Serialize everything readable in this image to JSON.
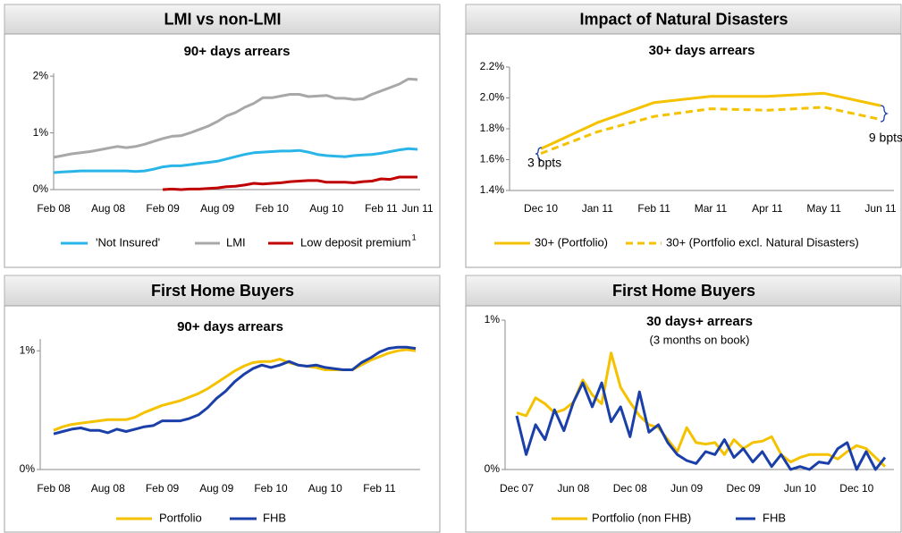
{
  "chart_data": [
    {
      "type": "line",
      "header": "LMI vs non-LMI",
      "title": "90+ days arrears",
      "categories": [
        "Feb 08",
        null,
        null,
        null,
        null,
        null,
        "Aug 08",
        null,
        null,
        null,
        null,
        null,
        "Feb 09",
        null,
        null,
        null,
        null,
        null,
        "Aug 09",
        null,
        null,
        null,
        null,
        null,
        "Feb 10",
        null,
        null,
        null,
        null,
        null,
        "Aug 10",
        null,
        null,
        null,
        null,
        null,
        "Feb 11",
        null,
        null,
        null,
        "Jun 11"
      ],
      "ylim": [
        0,
        2.05
      ],
      "yticks": [
        {
          "value": 0,
          "label": "0%"
        },
        {
          "value": 1,
          "label": "1%"
        },
        {
          "value": 2,
          "label": "2%"
        }
      ],
      "series": [
        {
          "name": "'Not Insured'",
          "color": "#29b5e8",
          "values": [
            0.3,
            0.31,
            0.32,
            0.33,
            0.33,
            0.33,
            0.33,
            0.33,
            0.33,
            0.32,
            0.33,
            0.36,
            0.4,
            0.42,
            0.42,
            0.44,
            0.46,
            0.48,
            0.5,
            0.54,
            0.58,
            0.62,
            0.65,
            0.66,
            0.67,
            0.68,
            0.68,
            0.69,
            0.66,
            0.62,
            0.6,
            0.59,
            0.58,
            0.6,
            0.61,
            0.62,
            0.64,
            0.67,
            0.7,
            0.72,
            0.71
          ]
        },
        {
          "name": "LMI",
          "color": "#a8a8a8",
          "values": [
            0.57,
            0.6,
            0.63,
            0.65,
            0.67,
            0.7,
            0.73,
            0.76,
            0.74,
            0.76,
            0.8,
            0.85,
            0.9,
            0.94,
            0.95,
            1.0,
            1.06,
            1.12,
            1.2,
            1.3,
            1.36,
            1.45,
            1.52,
            1.62,
            1.62,
            1.65,
            1.68,
            1.68,
            1.64,
            1.65,
            1.66,
            1.61,
            1.61,
            1.59,
            1.6,
            1.68,
            1.74,
            1.8,
            1.86,
            1.95,
            1.94
          ]
        },
        {
          "name": "Low deposit premium",
          "footnote": "1",
          "color": "#c00000",
          "values": [
            null,
            null,
            null,
            null,
            null,
            null,
            null,
            null,
            null,
            null,
            null,
            null,
            0.0,
            0.01,
            0.0,
            0.01,
            0.01,
            0.02,
            0.03,
            0.05,
            0.06,
            0.08,
            0.11,
            0.1,
            0.11,
            0.12,
            0.14,
            0.15,
            0.16,
            0.16,
            0.13,
            0.13,
            0.13,
            0.12,
            0.14,
            0.15,
            0.19,
            0.18,
            0.22,
            0.22,
            0.22
          ]
        }
      ]
    },
    {
      "type": "line",
      "header": "Impact of Natural Disasters",
      "title": "30+ days arrears",
      "categories": [
        "Dec 10",
        "Jan 11",
        "Feb 11",
        "Mar 11",
        "Apr 11",
        "May 11",
        "Jun 11"
      ],
      "ylim": [
        1.4,
        2.2
      ],
      "yticks": [
        {
          "value": 1.4,
          "label": "1.4%"
        },
        {
          "value": 1.6,
          "label": "1.6%"
        },
        {
          "value": 1.8,
          "label": "1.8%"
        },
        {
          "value": 2.0,
          "label": "2.0%"
        },
        {
          "value": 2.2,
          "label": "2.2%"
        }
      ],
      "series": [
        {
          "name": "30+ (Portfolio)",
          "color": "#f5c200",
          "values": [
            1.67,
            1.84,
            1.97,
            2.01,
            2.01,
            2.03,
            1.95
          ]
        },
        {
          "name": "30+ (Portfolio excl. Natural Disasters)",
          "color": "#f5c200",
          "dashed": true,
          "values": [
            1.64,
            1.78,
            1.88,
            1.93,
            1.92,
            1.94,
            1.86
          ]
        }
      ],
      "annotations": [
        "3 bpts",
        "9 bpts"
      ]
    },
    {
      "type": "line",
      "header": "First Home Buyers",
      "title": "90+ days arrears",
      "categories": [
        "Feb 08",
        null,
        null,
        null,
        null,
        null,
        "Aug 08",
        null,
        null,
        null,
        null,
        null,
        "Feb 09",
        null,
        null,
        null,
        null,
        null,
        "Aug 09",
        null,
        null,
        null,
        null,
        null,
        "Feb 10",
        null,
        null,
        null,
        null,
        null,
        "Aug 10",
        null,
        null,
        null,
        null,
        null,
        "Feb 11",
        null,
        null,
        null,
        null
      ],
      "ylim": [
        0,
        1.1
      ],
      "yticks": [
        {
          "value": 0,
          "label": "0%"
        },
        {
          "value": 1,
          "label": "1%"
        }
      ],
      "series": [
        {
          "name": "Portfolio",
          "color": "#f5c200",
          "values": [
            0.33,
            0.36,
            0.38,
            0.39,
            0.4,
            0.41,
            0.42,
            0.42,
            0.42,
            0.44,
            0.48,
            0.51,
            0.54,
            0.56,
            0.58,
            0.61,
            0.64,
            0.68,
            0.73,
            0.78,
            0.83,
            0.87,
            0.9,
            0.91,
            0.91,
            0.93,
            0.9,
            0.88,
            0.87,
            0.86,
            0.84,
            0.84,
            0.84,
            0.84,
            0.88,
            0.92,
            0.95,
            0.98,
            1.0,
            1.01,
            1.0
          ]
        },
        {
          "name": "FHB",
          "color": "#1a3fa8",
          "values": [
            0.3,
            0.32,
            0.34,
            0.35,
            0.33,
            0.33,
            0.31,
            0.34,
            0.32,
            0.34,
            0.36,
            0.37,
            0.41,
            0.41,
            0.41,
            0.43,
            0.46,
            0.52,
            0.6,
            0.66,
            0.74,
            0.8,
            0.85,
            0.88,
            0.86,
            0.88,
            0.91,
            0.88,
            0.87,
            0.88,
            0.86,
            0.85,
            0.84,
            0.84,
            0.9,
            0.94,
            0.99,
            1.02,
            1.03,
            1.03,
            1.02
          ]
        }
      ]
    },
    {
      "type": "line",
      "header": "First Home Buyers",
      "title": "30 days+ arrears",
      "subtitle": "(3 months on book)",
      "categories": [
        "Dec 07",
        null,
        null,
        null,
        null,
        null,
        "Jun 08",
        null,
        null,
        null,
        null,
        null,
        "Dec 08",
        null,
        null,
        null,
        null,
        null,
        "Jun 09",
        null,
        null,
        null,
        null,
        null,
        "Dec 09",
        null,
        null,
        null,
        null,
        null,
        "Jun 10",
        null,
        null,
        null,
        null,
        null,
        "Dec 10",
        null,
        null,
        null
      ],
      "ylim": [
        0,
        1
      ],
      "yticks": [
        {
          "value": 0,
          "label": "0%"
        },
        {
          "value": 1,
          "label": "1%"
        }
      ],
      "series": [
        {
          "name": "Portfolio (non FHB)",
          "color": "#f5c200",
          "values": [
            0.38,
            0.36,
            0.48,
            0.44,
            0.38,
            0.4,
            0.45,
            0.6,
            0.5,
            0.44,
            0.78,
            0.55,
            0.45,
            0.36,
            0.3,
            0.28,
            0.2,
            0.12,
            0.28,
            0.18,
            0.17,
            0.18,
            0.1,
            0.2,
            0.14,
            0.18,
            0.19,
            0.22,
            0.1,
            0.05,
            0.08,
            0.1,
            0.1,
            0.1,
            0.07,
            0.12,
            0.16,
            0.14,
            0.08,
            0.02
          ]
        },
        {
          "name": "FHB",
          "color": "#1a3fa8",
          "values": [
            0.36,
            0.1,
            0.3,
            0.2,
            0.4,
            0.26,
            0.45,
            0.58,
            0.42,
            0.58,
            0.32,
            0.42,
            0.22,
            0.52,
            0.25,
            0.3,
            0.18,
            0.1,
            0.06,
            0.04,
            0.12,
            0.1,
            0.2,
            0.08,
            0.14,
            0.05,
            0.12,
            0.02,
            0.1,
            0.0,
            0.02,
            0.0,
            0.05,
            0.04,
            0.14,
            0.18,
            0.0,
            0.12,
            0.0,
            0.08
          ]
        }
      ]
    }
  ]
}
